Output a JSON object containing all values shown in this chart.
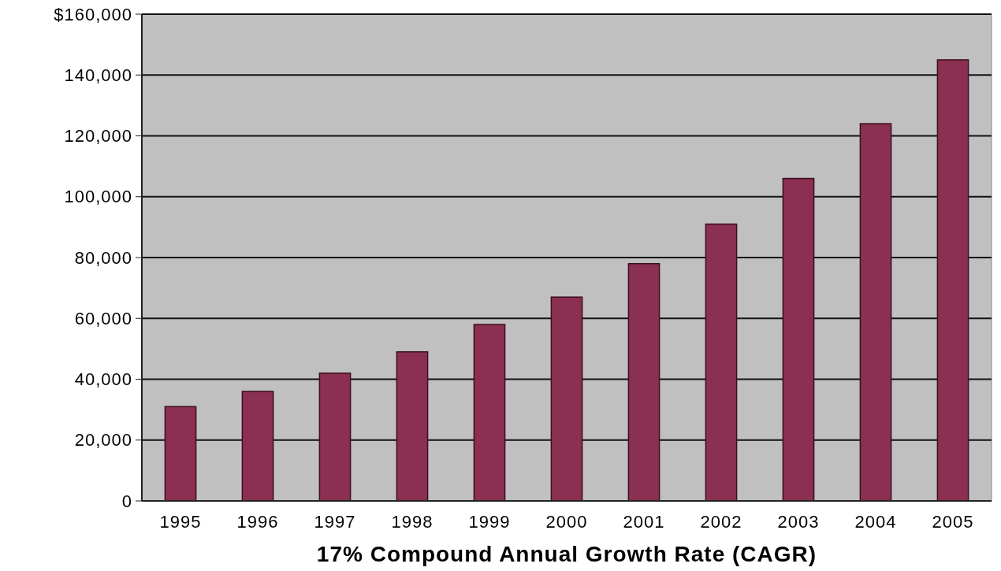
{
  "chart_data": {
    "type": "bar",
    "xlabel": "17% Compound Annual Growth Rate (CAGR)",
    "categories": [
      "1995",
      "1996",
      "1997",
      "1998",
      "1999",
      "2000",
      "2001",
      "2002",
      "2003",
      "2004",
      "2005"
    ],
    "values": [
      31000,
      36000,
      42000,
      49000,
      58000,
      67000,
      78000,
      91000,
      106000,
      124000,
      145000
    ],
    "color": "#8b3052",
    "ylim": [
      0,
      160000
    ],
    "yticks": [
      0,
      {
        "value": 20000,
        "label": "20,000"
      },
      {
        "value": 40000,
        "label": "40,000"
      },
      {
        "value": 60000,
        "label": "60,000"
      },
      {
        "value": 80000,
        "label": "80,000"
      },
      {
        "value": 100000,
        "label": "100,000"
      },
      {
        "value": 120000,
        "label": "120,000"
      },
      {
        "value": 140000,
        "label": "140,000"
      },
      {
        "value": 160000,
        "label": "$160,000"
      }
    ],
    "grid": "y"
  }
}
